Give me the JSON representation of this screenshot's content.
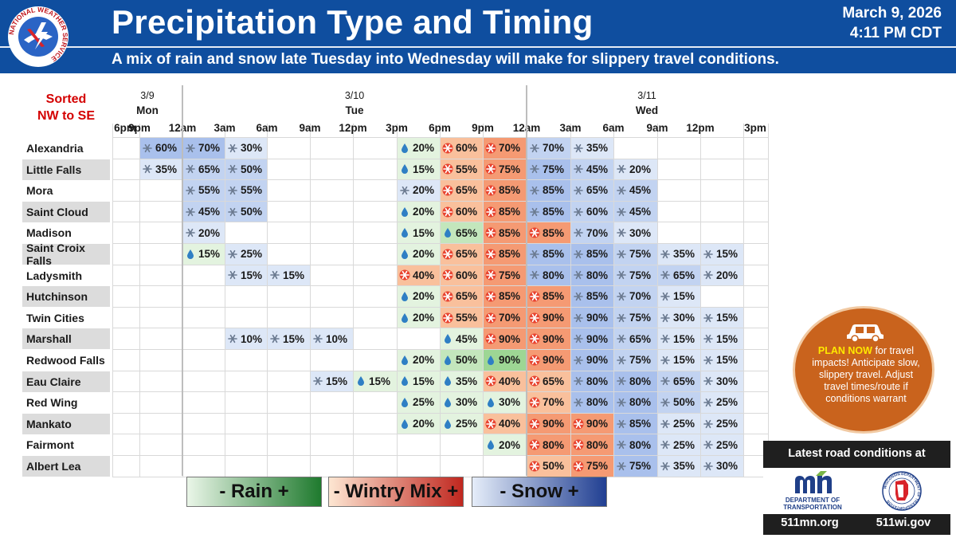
{
  "header": {
    "title": "Precipitation Type and Timing",
    "date": "March 9, 2026",
    "time": "4:11 PM CDT",
    "subtitle": "A mix of rain and snow late Tuesday into Wednesday will make for slippery travel conditions.",
    "logo_text": "NATIONAL WEATHER SERVICE",
    "logo_icon": "nws-logo-icon"
  },
  "table": {
    "sorted_label_1": "Sorted",
    "sorted_label_2": "NW to SE",
    "days": [
      {
        "date": "3/9",
        "name": "Mon"
      },
      {
        "date": "3/10",
        "name": "Tue"
      },
      {
        "date": "3/11",
        "name": "Wed"
      }
    ],
    "times": [
      "6pm",
      "9pm",
      "12am",
      "3am",
      "6am",
      "9am",
      "12pm",
      "3pm",
      "6pm",
      "9pm",
      "12am",
      "3am",
      "6am",
      "9am",
      "12pm",
      "3pm"
    ],
    "rows": [
      {
        "city": "Alexandria",
        "cells": [
          [
            1,
            "snow",
            3,
            "60%"
          ],
          [
            2,
            "snow",
            3,
            "70%"
          ],
          [
            3,
            "snow",
            1,
            "30%"
          ],
          [
            7,
            "rain",
            1,
            "20%"
          ],
          [
            8,
            "mix",
            2,
            "60%"
          ],
          [
            9,
            "mix",
            3,
            "70%"
          ],
          [
            10,
            "snow",
            2,
            "70%"
          ],
          [
            11,
            "snow",
            1,
            "35%"
          ]
        ]
      },
      {
        "city": "Little Falls",
        "cells": [
          [
            1,
            "snow",
            1,
            "35%"
          ],
          [
            2,
            "snow",
            2,
            "65%"
          ],
          [
            3,
            "snow",
            2,
            "50%"
          ],
          [
            7,
            "rain",
            1,
            "15%"
          ],
          [
            8,
            "mix",
            2,
            "55%"
          ],
          [
            9,
            "mix",
            3,
            "75%"
          ],
          [
            10,
            "snow",
            3,
            "75%"
          ],
          [
            11,
            "snow",
            2,
            "45%"
          ],
          [
            12,
            "snow",
            1,
            "20%"
          ]
        ]
      },
      {
        "city": "Mora",
        "cells": [
          [
            2,
            "snow",
            2,
            "55%"
          ],
          [
            3,
            "snow",
            2,
            "55%"
          ],
          [
            7,
            "snow",
            1,
            "20%"
          ],
          [
            8,
            "mix",
            2,
            "65%"
          ],
          [
            9,
            "mix",
            3,
            "85%"
          ],
          [
            10,
            "snow",
            3,
            "85%"
          ],
          [
            11,
            "snow",
            2,
            "65%"
          ],
          [
            12,
            "snow",
            2,
            "45%"
          ]
        ]
      },
      {
        "city": "Saint Cloud",
        "cells": [
          [
            2,
            "snow",
            2,
            "45%"
          ],
          [
            3,
            "snow",
            2,
            "50%"
          ],
          [
            7,
            "rain",
            1,
            "20%"
          ],
          [
            8,
            "mix",
            2,
            "60%"
          ],
          [
            9,
            "mix",
            3,
            "85%"
          ],
          [
            10,
            "snow",
            3,
            "85%"
          ],
          [
            11,
            "snow",
            2,
            "60%"
          ],
          [
            12,
            "snow",
            2,
            "45%"
          ]
        ]
      },
      {
        "city": "Madison",
        "cells": [
          [
            2,
            "snow",
            1,
            "20%"
          ],
          [
            7,
            "rain",
            1,
            "15%"
          ],
          [
            8,
            "rain",
            2,
            "65%"
          ],
          [
            9,
            "mix",
            3,
            "85%"
          ],
          [
            10,
            "mix",
            3,
            "85%"
          ],
          [
            11,
            "snow",
            2,
            "70%"
          ],
          [
            12,
            "snow",
            1,
            "30%"
          ]
        ]
      },
      {
        "city": "Saint Croix Falls",
        "cells": [
          [
            2,
            "rain",
            1,
            "15%"
          ],
          [
            3,
            "snow",
            1,
            "25%"
          ],
          [
            7,
            "rain",
            1,
            "20%"
          ],
          [
            8,
            "mix",
            2,
            "65%"
          ],
          [
            9,
            "mix",
            3,
            "85%"
          ],
          [
            10,
            "snow",
            3,
            "85%"
          ],
          [
            11,
            "snow",
            3,
            "85%"
          ],
          [
            12,
            "snow",
            2,
            "75%"
          ],
          [
            13,
            "snow",
            1,
            "35%"
          ],
          [
            14,
            "snow",
            1,
            "15%"
          ]
        ]
      },
      {
        "city": "Ladysmith",
        "cells": [
          [
            3,
            "snow",
            1,
            "15%"
          ],
          [
            4,
            "snow",
            1,
            "15%"
          ],
          [
            7,
            "mix",
            2,
            "40%"
          ],
          [
            8,
            "mix",
            2,
            "60%"
          ],
          [
            9,
            "mix",
            3,
            "75%"
          ],
          [
            10,
            "snow",
            3,
            "80%"
          ],
          [
            11,
            "snow",
            3,
            "80%"
          ],
          [
            12,
            "snow",
            2,
            "75%"
          ],
          [
            13,
            "snow",
            2,
            "65%"
          ],
          [
            14,
            "snow",
            1,
            "20%"
          ]
        ]
      },
      {
        "city": "Hutchinson",
        "cells": [
          [
            7,
            "rain",
            1,
            "20%"
          ],
          [
            8,
            "mix",
            2,
            "65%"
          ],
          [
            9,
            "mix",
            3,
            "85%"
          ],
          [
            10,
            "mix",
            3,
            "85%"
          ],
          [
            11,
            "snow",
            3,
            "85%"
          ],
          [
            12,
            "snow",
            2,
            "70%"
          ],
          [
            13,
            "snow",
            1,
            "15%"
          ]
        ]
      },
      {
        "city": "Twin Cities",
        "cells": [
          [
            7,
            "rain",
            1,
            "20%"
          ],
          [
            8,
            "mix",
            2,
            "55%"
          ],
          [
            9,
            "mix",
            3,
            "70%"
          ],
          [
            10,
            "mix",
            3,
            "90%"
          ],
          [
            11,
            "snow",
            3,
            "90%"
          ],
          [
            12,
            "snow",
            2,
            "75%"
          ],
          [
            13,
            "snow",
            1,
            "30%"
          ],
          [
            14,
            "snow",
            1,
            "15%"
          ]
        ]
      },
      {
        "city": "Marshall",
        "cells": [
          [
            3,
            "snow",
            1,
            "10%"
          ],
          [
            4,
            "snow",
            1,
            "15%"
          ],
          [
            5,
            "snow",
            1,
            "10%"
          ],
          [
            8,
            "rain",
            1,
            "45%"
          ],
          [
            9,
            "mix",
            3,
            "90%"
          ],
          [
            10,
            "mix",
            3,
            "90%"
          ],
          [
            11,
            "snow",
            3,
            "90%"
          ],
          [
            12,
            "snow",
            2,
            "65%"
          ],
          [
            13,
            "snow",
            1,
            "15%"
          ],
          [
            14,
            "snow",
            1,
            "15%"
          ]
        ]
      },
      {
        "city": "Redwood Falls",
        "cells": [
          [
            7,
            "rain",
            1,
            "20%"
          ],
          [
            8,
            "rain",
            2,
            "50%"
          ],
          [
            9,
            "rain",
            3,
            "90%"
          ],
          [
            10,
            "mix",
            3,
            "90%"
          ],
          [
            11,
            "snow",
            3,
            "90%"
          ],
          [
            12,
            "snow",
            2,
            "75%"
          ],
          [
            13,
            "snow",
            1,
            "15%"
          ],
          [
            14,
            "snow",
            1,
            "15%"
          ]
        ]
      },
      {
        "city": "Eau Claire",
        "cells": [
          [
            5,
            "snow",
            1,
            "15%"
          ],
          [
            6,
            "rain",
            1,
            "15%"
          ],
          [
            7,
            "rain",
            1,
            "15%"
          ],
          [
            8,
            "rain",
            1,
            "35%"
          ],
          [
            9,
            "mix",
            2,
            "40%"
          ],
          [
            10,
            "mix",
            2,
            "65%"
          ],
          [
            11,
            "snow",
            3,
            "80%"
          ],
          [
            12,
            "snow",
            3,
            "80%"
          ],
          [
            13,
            "snow",
            2,
            "65%"
          ],
          [
            14,
            "snow",
            1,
            "30%"
          ]
        ]
      },
      {
        "city": "Red Wing",
        "cells": [
          [
            7,
            "rain",
            1,
            "25%"
          ],
          [
            8,
            "rain",
            1,
            "30%"
          ],
          [
            9,
            "rain",
            1,
            "30%"
          ],
          [
            10,
            "mix",
            2,
            "70%"
          ],
          [
            11,
            "snow",
            3,
            "80%"
          ],
          [
            12,
            "snow",
            3,
            "80%"
          ],
          [
            13,
            "snow",
            2,
            "50%"
          ],
          [
            14,
            "snow",
            1,
            "25%"
          ]
        ]
      },
      {
        "city": "Mankato",
        "cells": [
          [
            7,
            "rain",
            1,
            "20%"
          ],
          [
            8,
            "rain",
            1,
            "25%"
          ],
          [
            9,
            "mix",
            2,
            "40%"
          ],
          [
            10,
            "mix",
            3,
            "90%"
          ],
          [
            11,
            "mix",
            3,
            "90%"
          ],
          [
            12,
            "snow",
            3,
            "85%"
          ],
          [
            13,
            "snow",
            1,
            "25%"
          ],
          [
            14,
            "snow",
            1,
            "25%"
          ]
        ]
      },
      {
        "city": "Fairmont",
        "cells": [
          [
            9,
            "rain",
            1,
            "20%"
          ],
          [
            10,
            "mix",
            3,
            "80%"
          ],
          [
            11,
            "mix",
            3,
            "80%"
          ],
          [
            12,
            "snow",
            3,
            "80%"
          ],
          [
            13,
            "snow",
            1,
            "25%"
          ],
          [
            14,
            "snow",
            1,
            "25%"
          ]
        ]
      },
      {
        "city": "Albert Lea",
        "cells": [
          [
            10,
            "mix",
            2,
            "50%"
          ],
          [
            11,
            "mix",
            3,
            "75%"
          ],
          [
            12,
            "snow",
            3,
            "75%"
          ],
          [
            13,
            "snow",
            1,
            "35%"
          ],
          [
            14,
            "snow",
            1,
            "30%"
          ]
        ]
      }
    ]
  },
  "colors": {
    "rain": [
      "#e3f3df",
      "#c3e6bc",
      "#9dd694"
    ],
    "mix": [
      "#fde0c8",
      "#f9c09c",
      "#f59a73"
    ],
    "snow": [
      "#dde7f7",
      "#c2d3f1",
      "#a9c0ec"
    ],
    "header": "#0f4e9f"
  },
  "legend": {
    "rain": "-  Rain +",
    "mix": "- Wintry Mix +",
    "snow": "-   Snow  +"
  },
  "plan": {
    "strong": "PLAN NOW",
    "text": " for travel impacts! Anticipate slow, slippery travel. Adjust travel times/route if conditions warrant",
    "icon": "car-icon"
  },
  "road": {
    "title": "Latest road conditions at",
    "mn_label": "DEPARTMENT OF TRANSPORTATION",
    "mn_url": "511mn.org",
    "wi_url": "511wi.gov",
    "wi_logo_text": "WISCONSIN DEPARTMENT OF TRANSPORTATION"
  }
}
